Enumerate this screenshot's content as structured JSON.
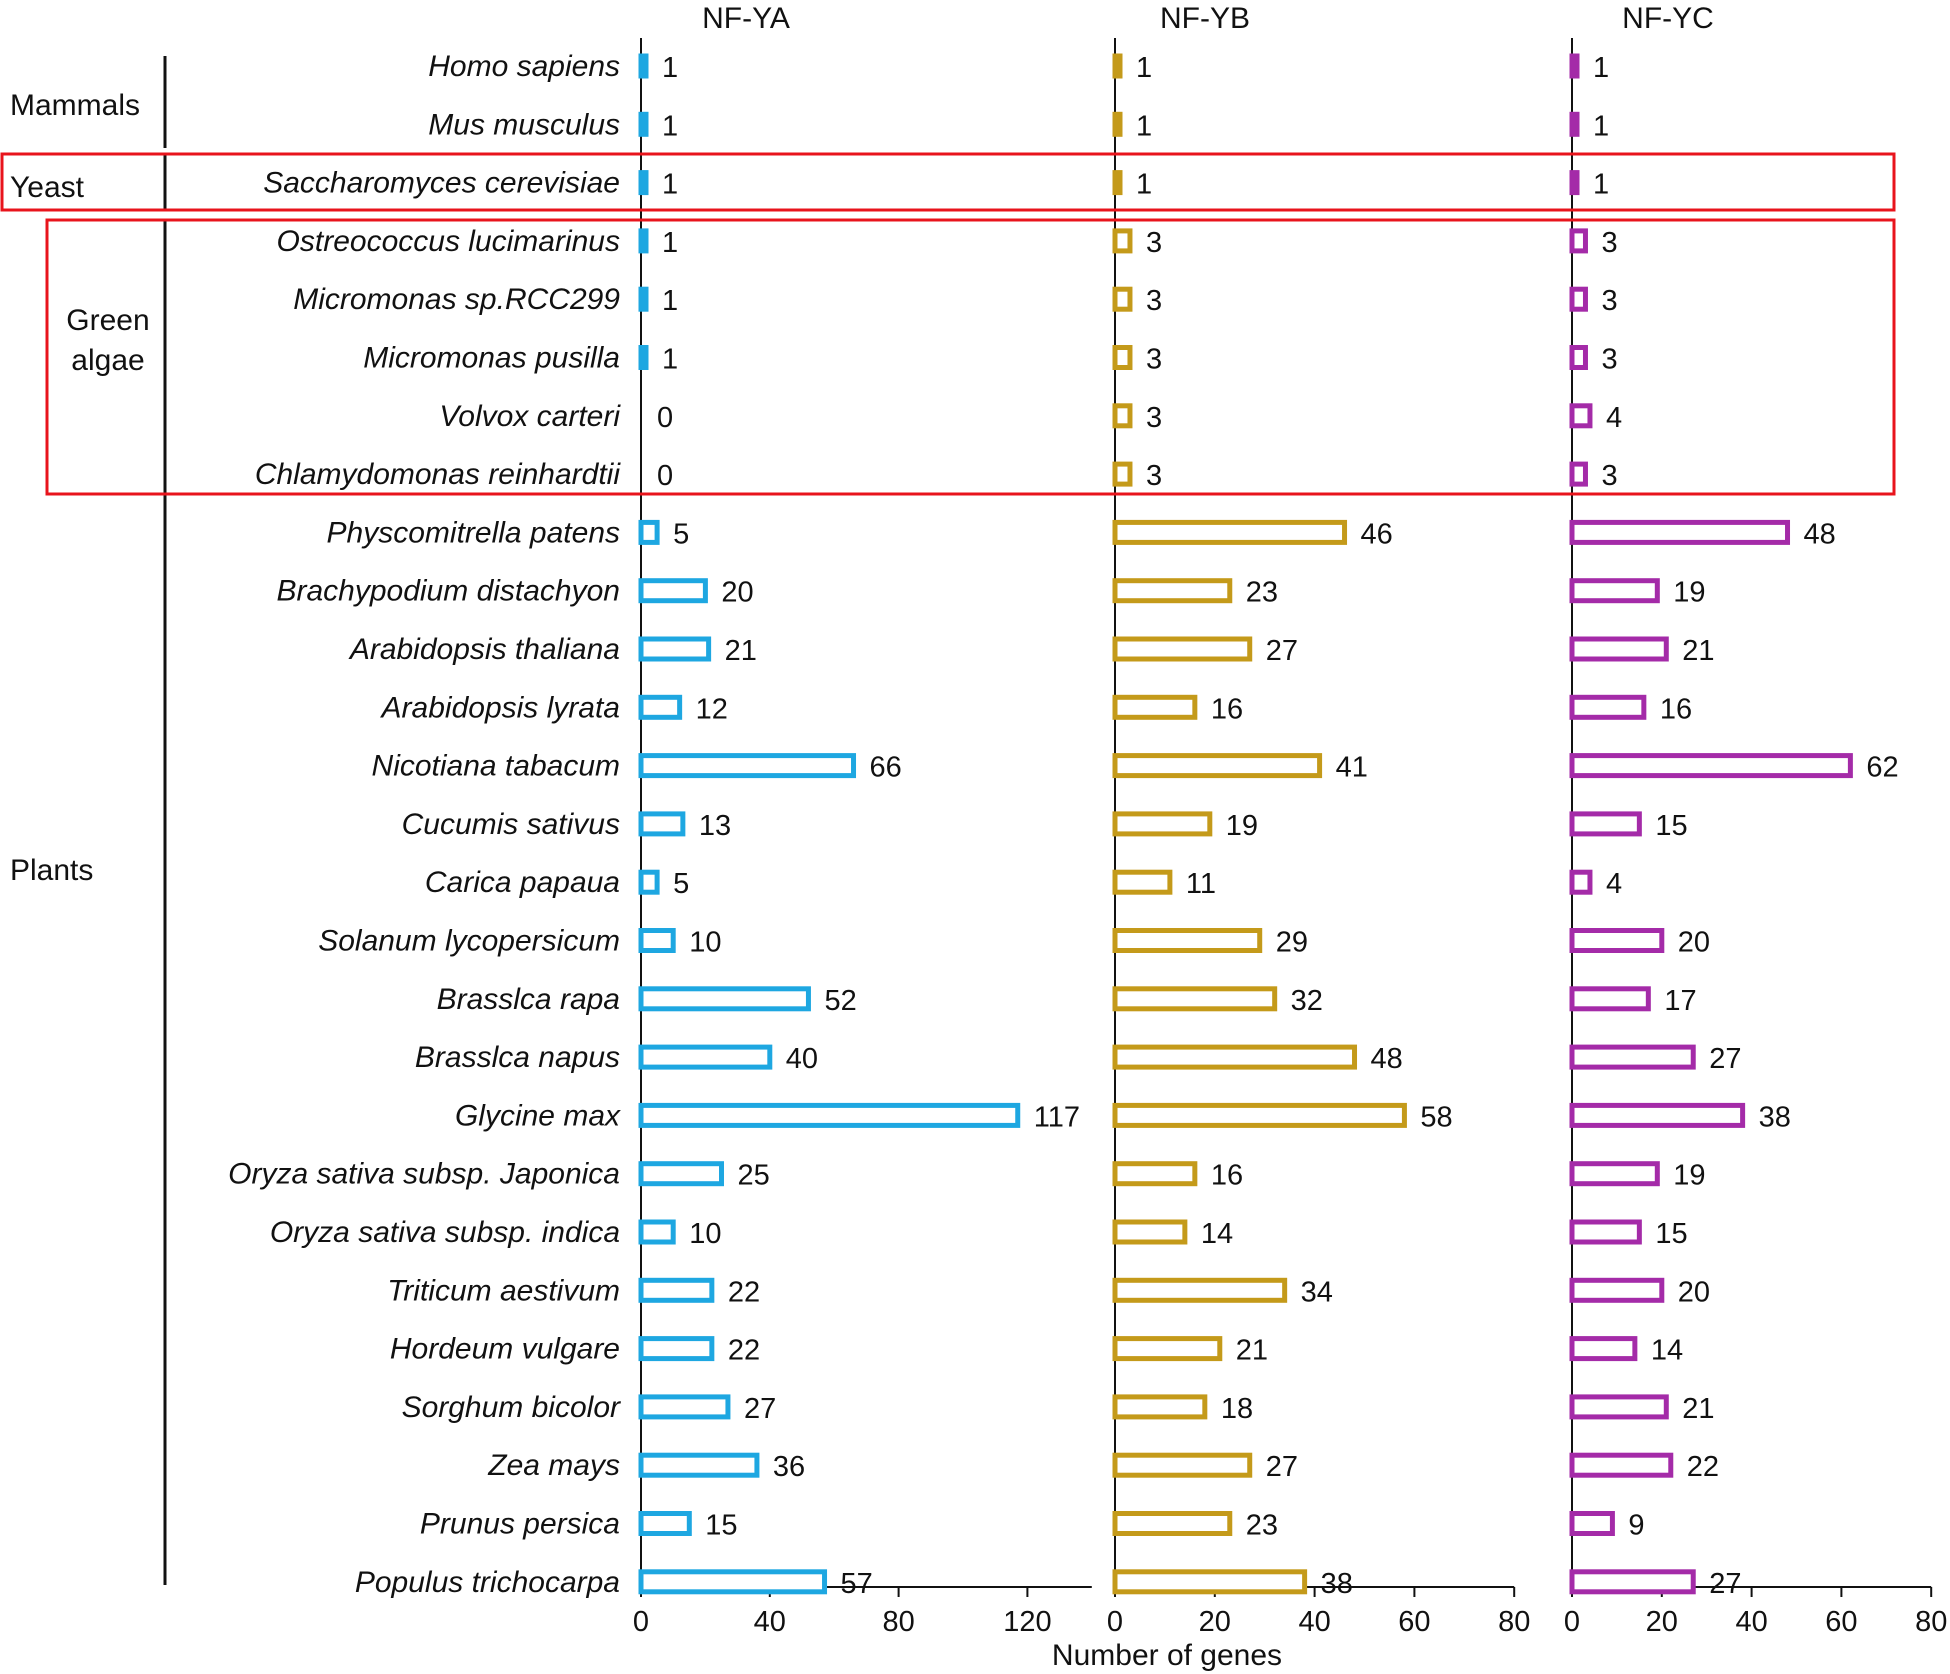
{
  "chart_data": {
    "type": "bar",
    "orientation": "horizontal",
    "xlabel": "Number of genes",
    "categories": [
      "Homo sapiens",
      "Mus musculus",
      "Saccharomyces cerevisiae",
      "Ostreococcus lucimarinus",
      "Micromonas sp.RCC299",
      "Micromonas pusilla",
      "Volvox carteri",
      "Chlamydomonas reinhardtii",
      "Physcomitrella patens",
      "Brachypodium distachyon",
      "Arabidopsis thaliana",
      "Arabidopsis lyrata",
      "Nicotiana tabacum",
      "Cucumis sativus",
      "Carica papaua",
      "Solanum lycopersicum",
      "Brasslca rapa",
      "Brasslca napus",
      "Glycine max",
      "Oryza sativa subsp. Japonica",
      "Oryza sativa subsp. indica",
      "Triticum aestivum",
      "Hordeum vulgare",
      "Sorghum bicolor",
      "Zea mays",
      "Prunus persica",
      "Populus trichocarpa"
    ],
    "groups": [
      {
        "label": "Mammals",
        "start": 0,
        "end": 1,
        "boxed": false
      },
      {
        "label": "Yeast",
        "start": 2,
        "end": 2,
        "boxed": true
      },
      {
        "label": "Green algae",
        "start": 3,
        "end": 7,
        "boxed": true
      },
      {
        "label": "Plants",
        "start": 8,
        "end": 26,
        "boxed": false
      }
    ],
    "series": [
      {
        "name": "NF-YA",
        "color": "#1ea7e1",
        "xlim": [
          0,
          140
        ],
        "ticks": [
          0,
          40,
          80,
          120
        ],
        "values": [
          1,
          1,
          1,
          1,
          1,
          1,
          0,
          0,
          5,
          20,
          21,
          12,
          66,
          13,
          5,
          10,
          52,
          40,
          117,
          25,
          10,
          22,
          22,
          27,
          36,
          15,
          57
        ]
      },
      {
        "name": "NF-YB",
        "color": "#c49a1a",
        "xlim": [
          0,
          80
        ],
        "ticks": [
          0,
          20,
          40,
          60,
          80
        ],
        "values": [
          1,
          1,
          1,
          3,
          3,
          3,
          3,
          3,
          46,
          23,
          27,
          16,
          41,
          19,
          11,
          29,
          32,
          48,
          58,
          16,
          14,
          34,
          21,
          18,
          27,
          23,
          38
        ]
      },
      {
        "name": "NF-YC",
        "color": "#a42ba8",
        "xlim": [
          0,
          80
        ],
        "ticks": [
          0,
          20,
          40,
          60,
          80
        ],
        "values": [
          1,
          1,
          1,
          3,
          3,
          3,
          4,
          3,
          48,
          19,
          21,
          16,
          62,
          15,
          4,
          20,
          17,
          27,
          38,
          19,
          15,
          20,
          14,
          21,
          22,
          9,
          27
        ]
      }
    ],
    "highlight_color": "#e8141c"
  }
}
